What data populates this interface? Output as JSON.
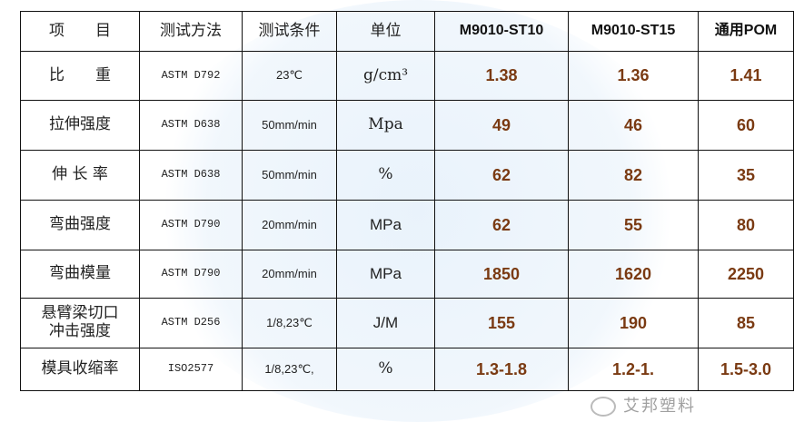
{
  "table": {
    "headers": [
      "项　　目",
      "测试方法",
      "测试条件",
      "单位",
      "M9010-ST10",
      "M9010-ST15",
      "通用POM"
    ],
    "rows": [
      {
        "item": "比　　重",
        "method": "ASTM D792",
        "condition": "23℃",
        "unit": "g/cm³",
        "v1": "1.38",
        "v2": "1.36",
        "v3": "1.41"
      },
      {
        "item": "拉伸强度",
        "method": "ASTM D638",
        "condition": "50mm/min",
        "unit": "Mpa",
        "v1": "49",
        "v2": "46",
        "v3": "60"
      },
      {
        "item": "伸 长 率",
        "method": "ASTM D638",
        "condition": "50mm/min",
        "unit": "%",
        "v1": "62",
        "v2": "82",
        "v3": "35"
      },
      {
        "item": "弯曲强度",
        "method": "ASTM D790",
        "condition": "20mm/min",
        "unit": "MPa",
        "v1": "62",
        "v2": "55",
        "v3": "80"
      },
      {
        "item": "弯曲模量",
        "method": "ASTM D790",
        "condition": "20mm/min",
        "unit": "MPa",
        "v1": "1850",
        "v2": "1620",
        "v3": "2250"
      },
      {
        "item": "悬臂梁切口\n冲击强度",
        "method": "ASTM D256",
        "condition": "1/8,23℃",
        "unit": "J/M",
        "v1": "155",
        "v2": "190",
        "v3": "85"
      },
      {
        "item": "模具收缩率",
        "method": "ISO2577",
        "condition": "1/8,23℃,",
        "unit": "%",
        "v1": "1.3-1.8",
        "v2": "1.2-1.",
        "v3": "1.5-3.0"
      }
    ]
  },
  "watermark": {
    "brand": "艾邦塑料",
    "icon": "wechat-icon"
  },
  "colors": {
    "value": "#7a3a12",
    "border": "#111111"
  }
}
